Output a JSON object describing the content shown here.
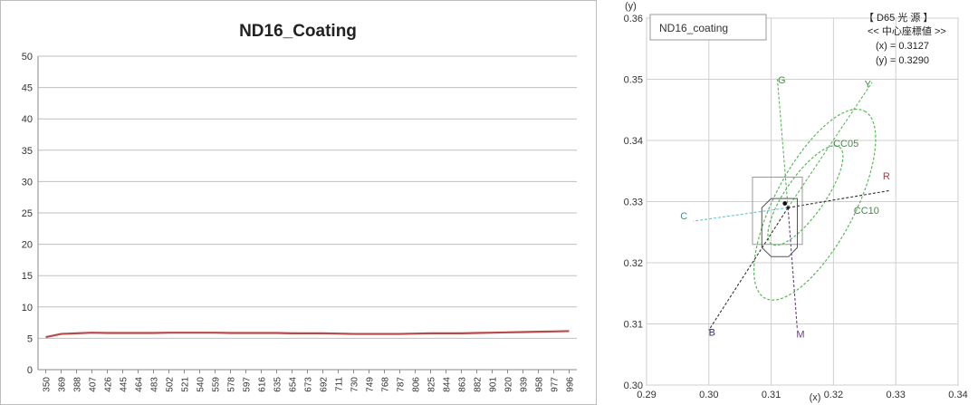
{
  "chart_data": [
    {
      "type": "line",
      "title": "ND16_Coating",
      "xlabel": "",
      "ylabel": "",
      "ylim": [
        0,
        50
      ],
      "yticks": [
        0,
        5,
        10,
        15,
        20,
        25,
        30,
        35,
        40,
        45,
        50
      ],
      "xticks": [
        350,
        369,
        388,
        407,
        426,
        445,
        464,
        483,
        502,
        521,
        540,
        559,
        578,
        597,
        616,
        635,
        654,
        673,
        692,
        711,
        730,
        749,
        768,
        787,
        806,
        825,
        844,
        863,
        882,
        901,
        920,
        939,
        958,
        977,
        996
      ],
      "grid": true,
      "series": [
        {
          "color": "#b94a48",
          "x": [
            350,
            369,
            388,
            407,
            426,
            445,
            464,
            483,
            502,
            521,
            540,
            559,
            578,
            597,
            616,
            635,
            654,
            673,
            692,
            711,
            730,
            749,
            768,
            787,
            806,
            825,
            844,
            863,
            882,
            901,
            920,
            939,
            958,
            977,
            996
          ],
          "values": [
            5.2,
            5.7,
            5.8,
            5.9,
            5.85,
            5.85,
            5.85,
            5.85,
            5.9,
            5.9,
            5.9,
            5.9,
            5.85,
            5.85,
            5.85,
            5.85,
            5.8,
            5.8,
            5.8,
            5.75,
            5.7,
            5.7,
            5.7,
            5.7,
            5.75,
            5.8,
            5.8,
            5.8,
            5.85,
            5.9,
            5.95,
            6.0,
            6.05,
            6.1,
            6.15
          ]
        }
      ]
    },
    {
      "type": "scatter",
      "title": "",
      "xlabel": "(x)",
      "ylabel": "(y)",
      "xlim": [
        0.29,
        0.34
      ],
      "ylim": [
        0.3,
        0.36
      ],
      "xticks": [
        0.29,
        0.3,
        0.31,
        0.32,
        0.33,
        0.34
      ],
      "yticks": [
        0.3,
        0.31,
        0.32,
        0.33,
        0.34,
        0.35,
        0.36
      ],
      "xtick_labels": [
        "0.29",
        "0.30",
        "0.31",
        "0.32",
        "0.33",
        "0.34"
      ],
      "ytick_labels": [
        "0.30",
        "0.31",
        "0.32",
        "0.33",
        "0.34",
        "0.35",
        "0.36"
      ],
      "grid": true,
      "sample_label": "ND16_coating",
      "illuminant": {
        "line1": "【 D65 光 源 】",
        "line2": "<< 中心座標値 >>",
        "line3": "(x) = 0.3127",
        "line4": "(y) = 0.3290"
      },
      "center": {
        "x": 0.3127,
        "y": 0.329
      },
      "sample_point": {
        "x": 0.3122,
        "y": 0.3297
      },
      "colors": {
        "green": "#59b859",
        "cyan": "#5fc8d8",
        "black": "#333333",
        "red": "#a04040",
        "purple": "#6a3f7a"
      },
      "direction_labels": [
        {
          "text": "G",
          "x": 0.3117,
          "y": 0.3493,
          "color": "#3f8f3f"
        },
        {
          "text": "Y",
          "x": 0.3255,
          "y": 0.3487,
          "color": "#3f8f3f"
        },
        {
          "text": "CC05",
          "x": 0.322,
          "y": 0.339,
          "color": "#3f8f3f"
        },
        {
          "text": "R",
          "x": 0.3285,
          "y": 0.3336,
          "color": "#a04040"
        },
        {
          "text": "CC10",
          "x": 0.3253,
          "y": 0.328,
          "color": "#3f8f3f"
        },
        {
          "text": "C",
          "x": 0.296,
          "y": 0.3271,
          "color": "#3f8f8f"
        },
        {
          "text": "B",
          "x": 0.3005,
          "y": 0.3081,
          "color": "#333366"
        },
        {
          "text": "M",
          "x": 0.3147,
          "y": 0.3078,
          "color": "#6a3f7a"
        }
      ],
      "direction_lines": [
        {
          "name": "G",
          "to": [
            0.311,
            0.35
          ],
          "color": "#59b859"
        },
        {
          "name": "Y",
          "to": [
            0.3262,
            0.3495
          ],
          "color": "#59b859"
        },
        {
          "name": "R",
          "to": [
            0.329,
            0.3318
          ],
          "color": "#333333"
        },
        {
          "name": "C",
          "to": [
            0.2975,
            0.3268
          ],
          "color": "#5fc8d8"
        },
        {
          "name": "B",
          "to": [
            0.3,
            0.309
          ],
          "color": "#333333"
        },
        {
          "name": "M",
          "to": [
            0.3142,
            0.309
          ],
          "color": "#6a3f7a"
        }
      ],
      "ellipses": [
        {
          "name": "CC05",
          "cx": 0.3155,
          "cy": 0.331,
          "rx": 0.0095,
          "ry": 0.0032,
          "angle": -55,
          "color": "#59b859"
        },
        {
          "name": "CC10",
          "cx": 0.317,
          "cy": 0.3295,
          "rx": 0.017,
          "ry": 0.0065,
          "angle": -62,
          "color": "#59b859"
        }
      ],
      "tolerance_box": {
        "outer": [
          [
            0.307,
            0.334
          ],
          [
            0.315,
            0.334
          ],
          [
            0.315,
            0.323
          ],
          [
            0.307,
            0.323
          ]
        ],
        "inner": [
          [
            0.3085,
            0.329
          ],
          [
            0.31,
            0.3305
          ],
          [
            0.3142,
            0.3305
          ],
          [
            0.3142,
            0.3225
          ],
          [
            0.3128,
            0.321
          ],
          [
            0.31,
            0.321
          ],
          [
            0.3085,
            0.3225
          ]
        ]
      }
    }
  ]
}
